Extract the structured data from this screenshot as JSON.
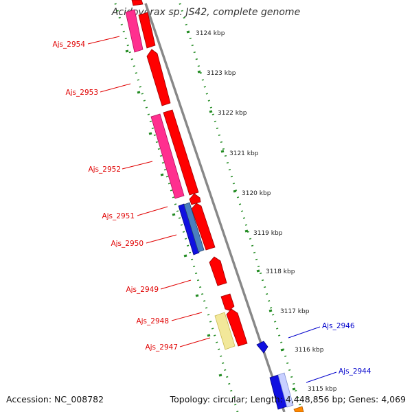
{
  "title": "Acidovorax sp. JS42, complete genome",
  "footer": {
    "accession": "Accession: NC_008782",
    "summary": "Topology: circular; Length: 4,448,856 bp; Genes: 4,069"
  },
  "colors": {
    "forward_cds": "#ff0000",
    "reverse_cds": "#ff2f8f",
    "blue_cds": "#1010e0",
    "steel_cds": "#4a7fbf",
    "pale_cds": "#f2e89a",
    "orange_cds": "#ff8800",
    "ticks": "#228b22",
    "backbone": "#888888",
    "label_left": "#e00000",
    "label_right": "#0000cc"
  },
  "tick_labels": [
    "3124 kbp",
    "3123 kbp",
    "3122 kbp",
    "3121 kbp",
    "3120 kbp",
    "3119 kbp",
    "3118 kbp",
    "3117 kbp",
    "3116 kbp",
    "3115 kbp"
  ],
  "gene_labels_left": [
    "Ajs_2954",
    "Ajs_2953",
    "Ajs_2952",
    "Ajs_2951",
    "Ajs_2950",
    "Ajs_2949",
    "Ajs_2948",
    "Ajs_2947"
  ],
  "gene_labels_right": [
    "Ajs_2946",
    "Ajs_2944"
  ]
}
